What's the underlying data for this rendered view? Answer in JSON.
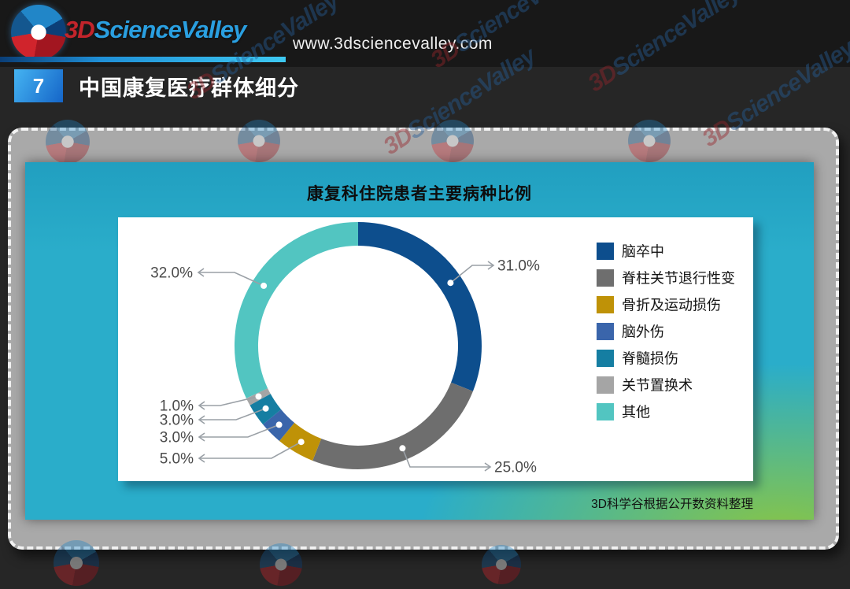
{
  "header": {
    "logo": {
      "prefix": "3D",
      "name": "ScienceValley",
      "prefix_color": "#c3242b",
      "name_color": "#2a9fe0"
    },
    "url": "www.3dsciencevalley.com",
    "slide_number": "7",
    "title": "中国康复医疗群体细分"
  },
  "watermark": {
    "prefix": "3D",
    "name": "ScienceValley"
  },
  "panel": {
    "chart_title": "康复科住院患者主要病种比例",
    "source": "3D科学谷根据公开数资料整理"
  },
  "chart_data": {
    "type": "pie",
    "donut": true,
    "title": "康复科住院患者主要病种比例",
    "start_angle_deg": 0,
    "direction": "clockwise",
    "legend_position": "right",
    "series": [
      {
        "name": "脑卒中",
        "value": 31.0,
        "label": "31.0%",
        "color": "#0d4e8d"
      },
      {
        "name": "脊柱关节退行性变",
        "value": 25.0,
        "label": "25.0%",
        "color": "#6e6e6e"
      },
      {
        "name": "骨折及运动损伤",
        "value": 5.0,
        "label": "5.0%",
        "color": "#bf9207"
      },
      {
        "name": "脑外伤",
        "value": 3.0,
        "label": "3.0%",
        "color": "#3a65ab"
      },
      {
        "name": "脊髓损伤",
        "value": 3.0,
        "label": "3.0%",
        "color": "#157ea2"
      },
      {
        "name": "关节置换术",
        "value": 1.0,
        "label": "1.0%",
        "color": "#a5a5a5"
      },
      {
        "name": "其他",
        "value": 32.0,
        "label": "32.0%",
        "color": "#52c5c1"
      }
    ]
  }
}
